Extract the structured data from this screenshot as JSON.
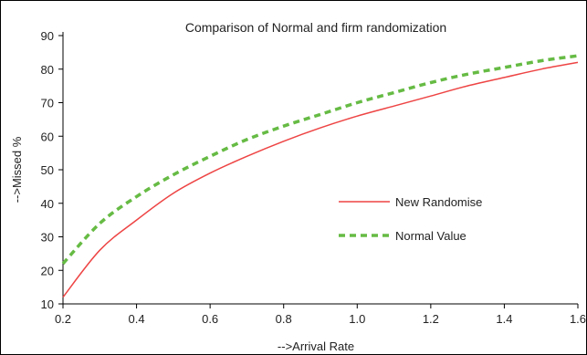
{
  "chart_data": {
    "type": "line",
    "title": "Comparison of Normal and firm randomization",
    "xlabel": "-->Arrival Rate",
    "ylabel": "-->Missed %",
    "xlim": [
      0.2,
      1.6
    ],
    "ylim": [
      10,
      90
    ],
    "x_ticks": [
      "0.2",
      "0.4",
      "0.6",
      "0.8",
      "1.0",
      "1.2",
      "1.4",
      "1.6"
    ],
    "y_ticks": [
      "10",
      "20",
      "30",
      "40",
      "50",
      "60",
      "70",
      "80",
      "90"
    ],
    "grid": false,
    "legend_position": "center-right",
    "x": [
      0.2,
      0.3,
      0.4,
      0.5,
      0.6,
      0.7,
      0.8,
      0.9,
      1.0,
      1.1,
      1.2,
      1.3,
      1.4,
      1.5,
      1.6
    ],
    "series": [
      {
        "name": "New Randomise",
        "color": "#ee4444",
        "style": "solid",
        "values": [
          12,
          26,
          35,
          43,
          49,
          54,
          58.5,
          62.5,
          66,
          69,
          72,
          75,
          77.5,
          80,
          82
        ]
      },
      {
        "name": "Normal Value",
        "color": "#66bb44",
        "style": "dashed",
        "values": [
          22,
          34,
          42,
          48.5,
          54,
          59,
          63,
          66.5,
          70,
          73,
          76,
          78.5,
          80.5,
          82.5,
          84
        ]
      }
    ]
  }
}
